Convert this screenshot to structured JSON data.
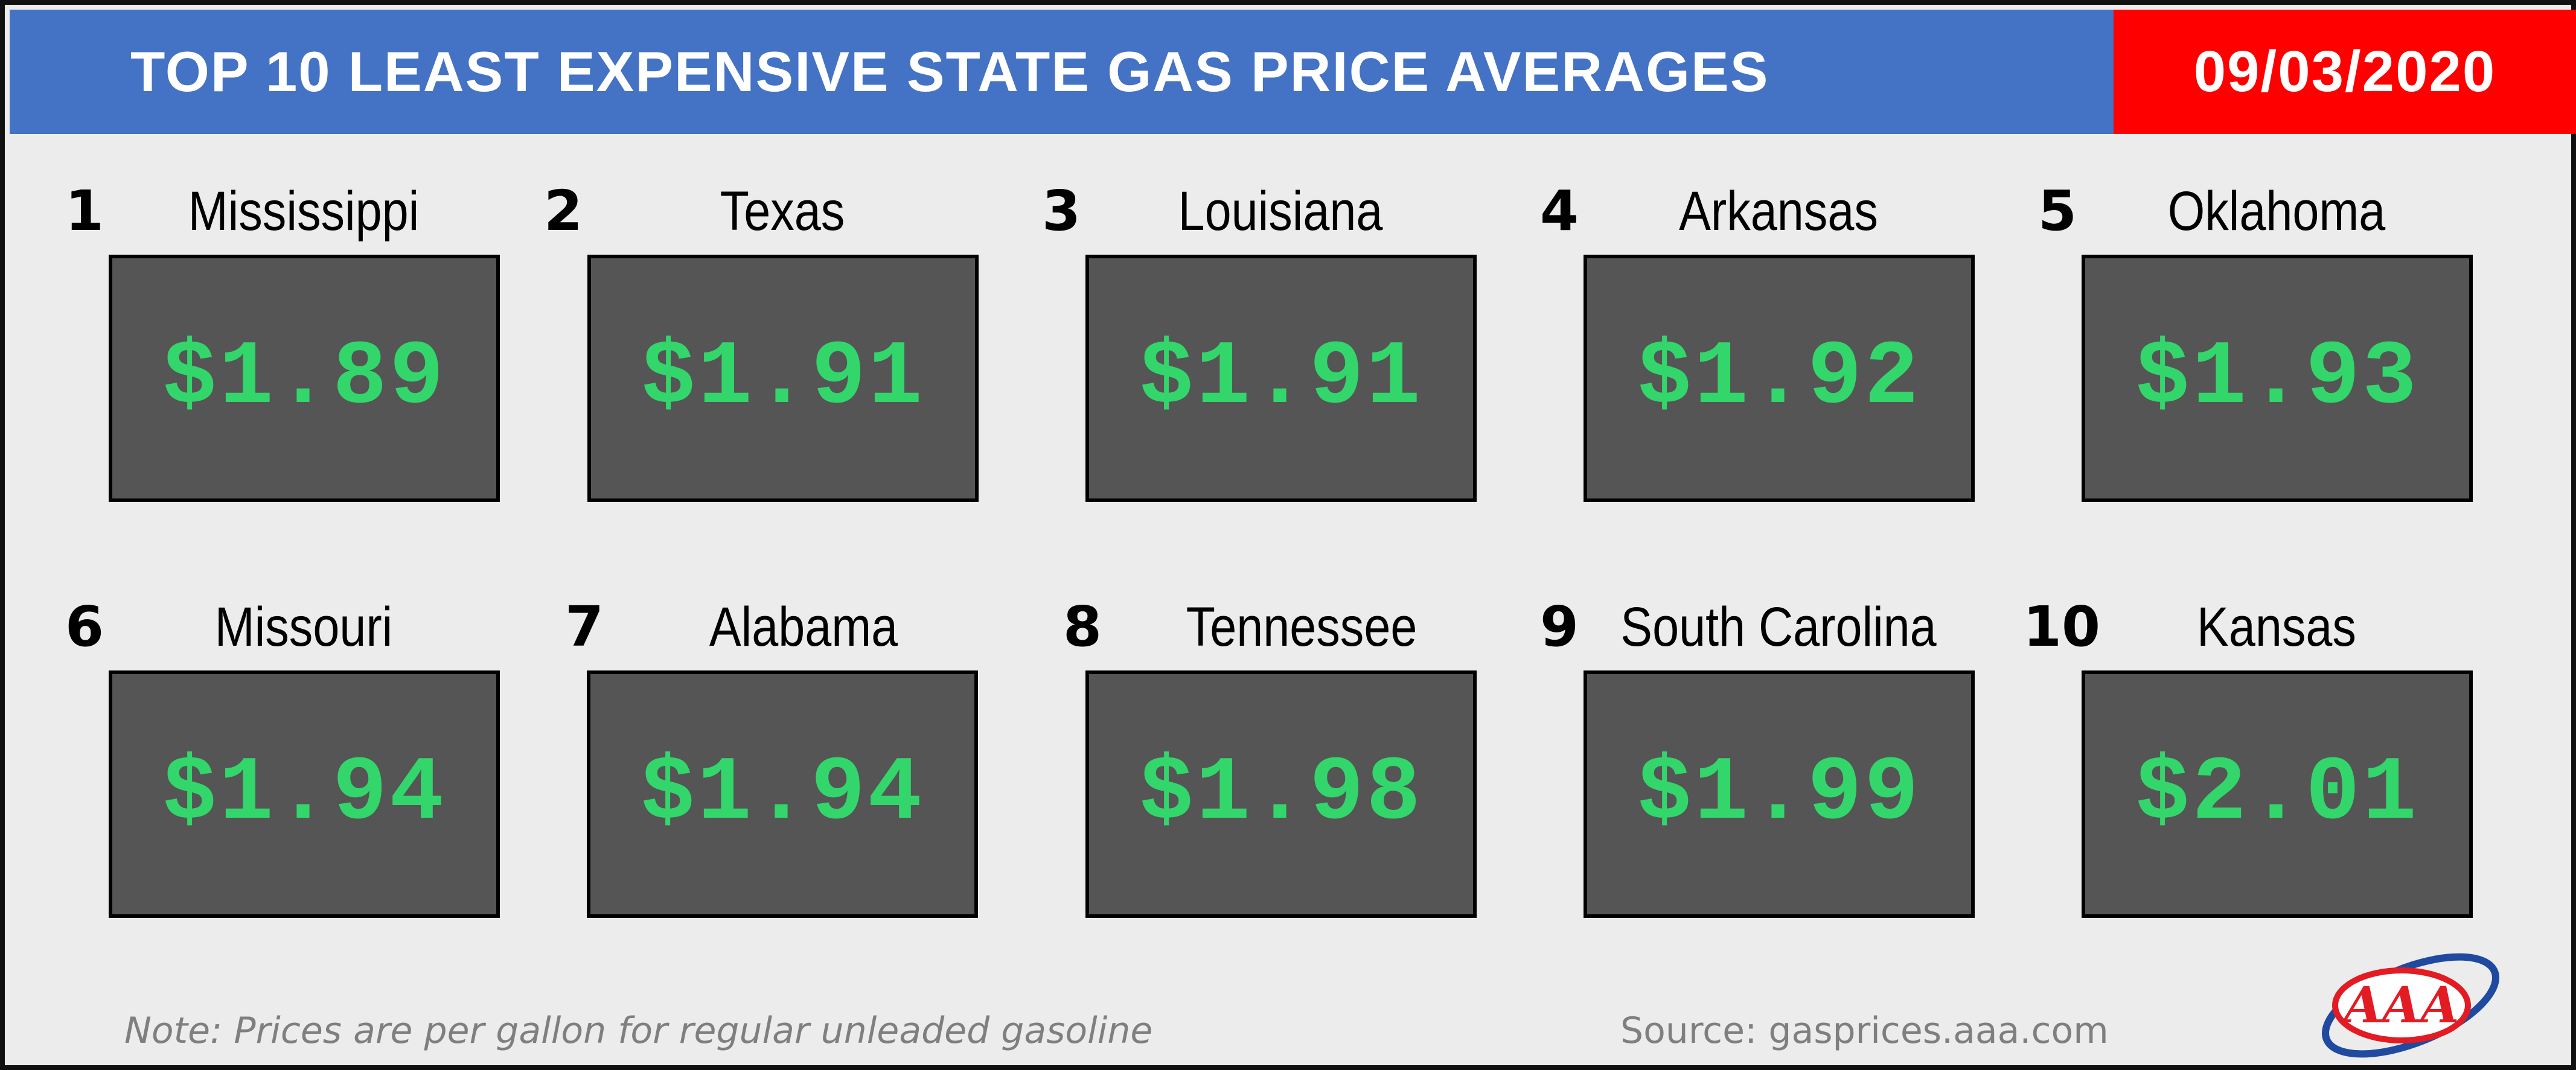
{
  "header": {
    "title": "TOP 10 LEAST EXPENSIVE STATE GAS PRICE AVERAGES",
    "date": "09/03/2020",
    "colors": {
      "title_bg": "#4472c4",
      "date_bg": "#ff0000"
    }
  },
  "states": [
    {
      "rank": "1",
      "name": "Mississippi",
      "price": "$1.89"
    },
    {
      "rank": "2",
      "name": "Texas",
      "price": "$1.91"
    },
    {
      "rank": "3",
      "name": "Louisiana",
      "price": "$1.91"
    },
    {
      "rank": "4",
      "name": "Arkansas",
      "price": "$1.92"
    },
    {
      "rank": "5",
      "name": "Oklahoma",
      "price": "$1.93"
    },
    {
      "rank": "6",
      "name": "Missouri",
      "price": "$1.94"
    },
    {
      "rank": "7",
      "name": "Alabama",
      "price": "$1.94"
    },
    {
      "rank": "8",
      "name": "Tennessee",
      "price": "$1.98"
    },
    {
      "rank": "9",
      "name": "South Carolina",
      "price": "$1.99"
    },
    {
      "rank": "10",
      "name": "Kansas",
      "price": "$2.01"
    }
  ],
  "footer": {
    "note": "Note: Prices are per gallon for regular unleaded gasoline",
    "source": "Source: gasprices.aaa.com",
    "logo_text": "AAA"
  },
  "colors": {
    "price_text": "#33d66b",
    "price_box": "#555555",
    "background": "#ececec"
  }
}
